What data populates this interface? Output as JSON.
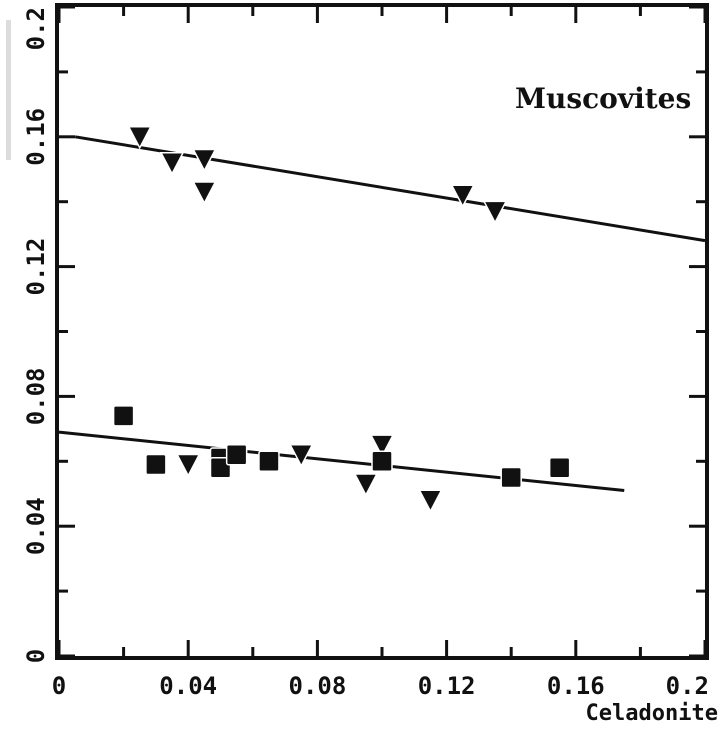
{
  "chart_data": {
    "type": "scatter",
    "title": "",
    "annotation": "Muscovites",
    "xlabel": "Celadonite",
    "ylabel": "",
    "xlim": [
      0,
      0.2
    ],
    "ylim": [
      0,
      0.2
    ],
    "x_ticks": [
      0,
      0.04,
      0.08,
      0.12,
      0.16,
      0.2
    ],
    "x_tick_labels": [
      "0",
      "0.04",
      "0.08",
      "0.12",
      "0.16",
      "0.2"
    ],
    "y_ticks": [
      0,
      0.04,
      0.08,
      0.12,
      0.16,
      0.2
    ],
    "y_tick_labels": [
      "0",
      "0.04",
      "0.08",
      "0.12",
      "0.16",
      "0.2"
    ],
    "grid": false,
    "series": [
      {
        "marker": "triangle-down",
        "points": [
          {
            "x": 0.025,
            "y": 0.16
          },
          {
            "x": 0.035,
            "y": 0.152
          },
          {
            "x": 0.045,
            "y": 0.153
          },
          {
            "x": 0.045,
            "y": 0.143
          },
          {
            "x": 0.125,
            "y": 0.142
          },
          {
            "x": 0.135,
            "y": 0.137
          },
          {
            "x": 0.04,
            "y": 0.059
          },
          {
            "x": 0.075,
            "y": 0.062
          },
          {
            "x": 0.095,
            "y": 0.053
          },
          {
            "x": 0.1,
            "y": 0.065
          },
          {
            "x": 0.115,
            "y": 0.048
          }
        ]
      },
      {
        "marker": "square",
        "points": [
          {
            "x": 0.02,
            "y": 0.074
          },
          {
            "x": 0.03,
            "y": 0.059
          },
          {
            "x": 0.05,
            "y": 0.061
          },
          {
            "x": 0.05,
            "y": 0.058
          },
          {
            "x": 0.055,
            "y": 0.062
          },
          {
            "x": 0.065,
            "y": 0.06
          },
          {
            "x": 0.1,
            "y": 0.06
          },
          {
            "x": 0.14,
            "y": 0.055
          },
          {
            "x": 0.155,
            "y": 0.058
          }
        ]
      }
    ],
    "fit_lines": [
      {
        "x1": 0.005,
        "y1": 0.16,
        "x2": 0.2,
        "y2": 0.128
      },
      {
        "x1": 0.0,
        "y1": 0.069,
        "x2": 0.175,
        "y2": 0.051
      }
    ],
    "colors": {
      "ink": "#111111",
      "background": "#ffffff"
    }
  }
}
